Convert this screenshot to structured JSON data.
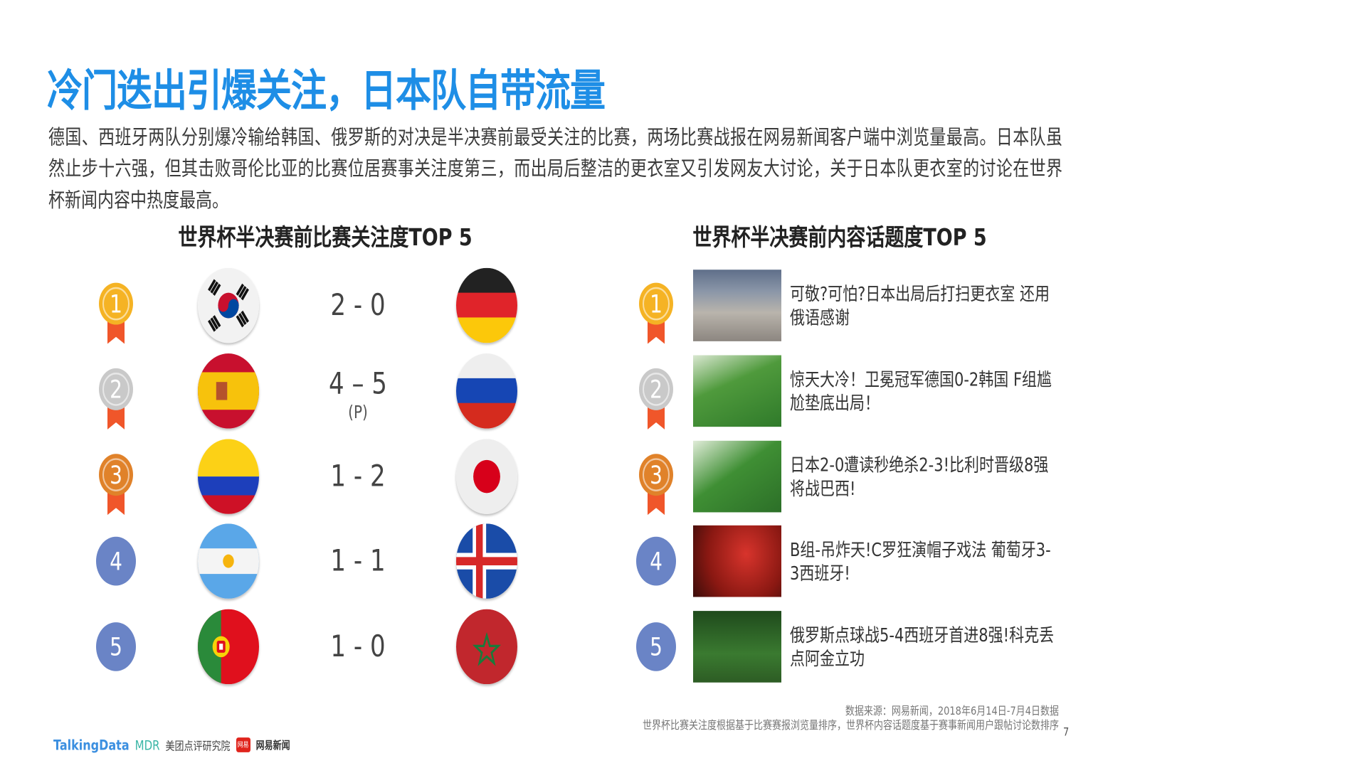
{
  "title": "冷门迭出引爆关注，日本队自带流量",
  "intro": "德国、西班牙两队分别爆冷输给韩国、俄罗斯的对决是半决赛前最受关注的比赛，两场比赛战报在网易新闻客户端中浏览量最高。日本队虽然止步十六强，但其击败哥伦比亚的比赛位居赛事关注度第三，而出局后整洁的更衣室又引发网友大讨论，关于日本队更衣室的讨论在世界杯新闻内容中热度最高。",
  "left": {
    "heading": "世界杯半决赛前比赛关注度TOP 5",
    "rows": [
      {
        "rank": "1",
        "medal": "gold",
        "flag_left": "south-korea-flag",
        "score": "2 - 0",
        "note": "",
        "flag_right": "germany-flag"
      },
      {
        "rank": "2",
        "medal": "silver",
        "flag_left": "spain-flag",
        "score": "4 – 5",
        "note": "(P)",
        "flag_right": "russia-flag"
      },
      {
        "rank": "3",
        "medal": "bronze",
        "flag_left": "colombia-flag",
        "score": "1 - 2",
        "note": "",
        "flag_right": "japan-flag"
      },
      {
        "rank": "4",
        "medal": "plain",
        "flag_left": "argentina-flag",
        "score": "1 - 1",
        "note": "",
        "flag_right": "iceland-flag"
      },
      {
        "rank": "5",
        "medal": "plain",
        "flag_left": "portugal-flag",
        "score": "1 - 0",
        "note": "",
        "flag_right": "morocco-flag"
      }
    ]
  },
  "right": {
    "heading": "世界杯半决赛前内容话题度TOP 5",
    "rows": [
      {
        "rank": "1",
        "medal": "gold",
        "title": "可敬?可怕?日本出局后打扫更衣室 还用俄语感谢"
      },
      {
        "rank": "2",
        "medal": "silver",
        "title": "惊天大冷！卫冕冠军德国0-2韩国 F组尴尬垫底出局！"
      },
      {
        "rank": "3",
        "medal": "bronze",
        "title": "日本2-0遭读秒绝杀2-3!比利时晋级8强将战巴西!"
      },
      {
        "rank": "4",
        "medal": "plain",
        "title": "B组-吊炸天!C罗狂演帽子戏法 葡萄牙3-3西班牙!"
      },
      {
        "rank": "5",
        "medal": "plain",
        "title": "俄罗斯点球战5-4西班牙首进8强!科克丢点阿金立功"
      }
    ]
  },
  "footer": {
    "source": "数据来源：网易新闻，2018年6月14日-7月4日数据",
    "note": "世界杯比赛关注度根据基于比赛赛报浏览量排序，世界杯内容话题度基于赛事新闻用户跟帖讨论数排序",
    "page": "7",
    "logos": {
      "talkingdata": "TalkingData",
      "mdr": "MDR",
      "meituan": "美团点评研究院",
      "netease_badge": "网易",
      "netease": "网易新闻"
    }
  },
  "colors": {
    "title": "#1e8ee6",
    "gold": "#f5b324",
    "silver": "#c9c9c9",
    "bronze": "#e0822a",
    "plain": "#6a84c6",
    "ribbon": "#f0562a"
  }
}
